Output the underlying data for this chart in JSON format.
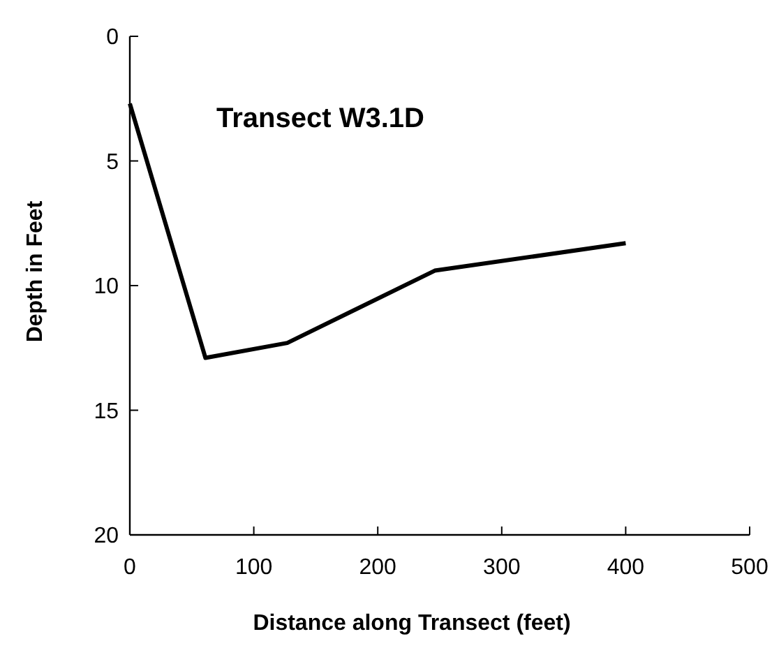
{
  "chart_data": {
    "type": "line",
    "title": "Transect W3.1D",
    "xlabel": "Distance along Transect (feet)",
    "ylabel": "Depth in Feet",
    "x": [
      0,
      61,
      127,
      246,
      400
    ],
    "series": [
      {
        "color": "#000000",
        "values": [
          2.7,
          12.9,
          12.3,
          9.4,
          8.3
        ]
      }
    ],
    "xlim": [
      0,
      500
    ],
    "xticks": [
      0,
      100,
      200,
      300,
      400,
      500
    ],
    "ylim": [
      20,
      0
    ],
    "yticks": [
      0,
      5,
      10,
      15,
      20
    ],
    "grid": false,
    "marker": "none",
    "line_style": "solid"
  }
}
